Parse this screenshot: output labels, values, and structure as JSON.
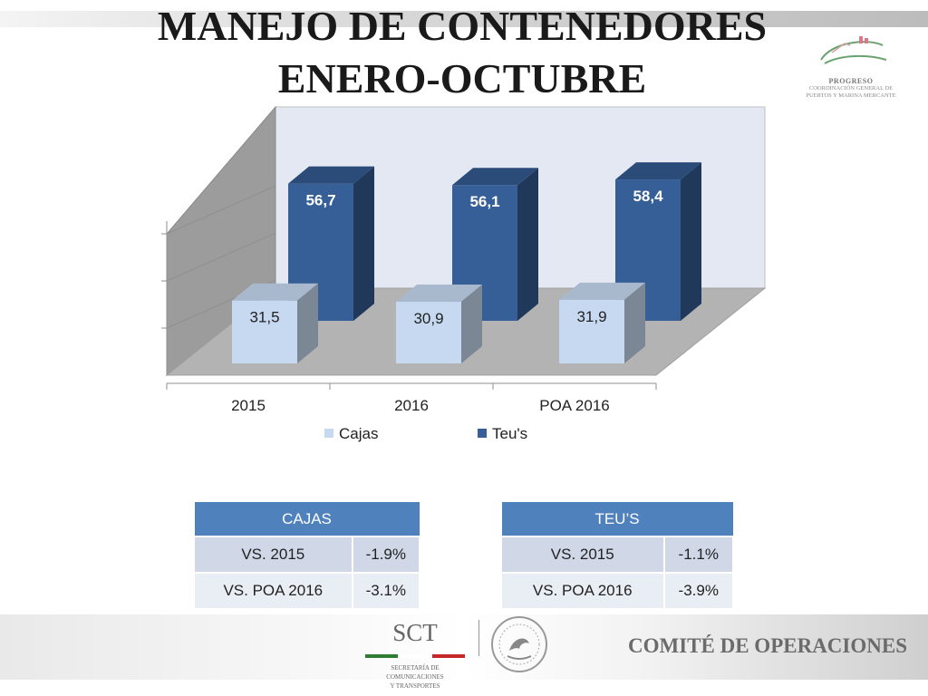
{
  "title_line1": "MANEJO DE CONTENEDORES",
  "title_line2": "ENERO-OCTUBRE",
  "logo": {
    "icon": "progreso-ship-logo",
    "name": "PROGRESO",
    "sub_line1": "COORDINACIÓN GENERAL DE",
    "sub_line2": "PUERTOS Y MARINA MERCANTE"
  },
  "chart_data": {
    "type": "bar",
    "style": "3d-clustered",
    "categories": [
      "2015",
      "2016",
      "POA 2016"
    ],
    "series": [
      {
        "name": "Cajas",
        "color": "#c6d9f1",
        "values": [
          31.5,
          30.9,
          31.9
        ],
        "labels": [
          "31,5",
          "30,9",
          "31,9"
        ]
      },
      {
        "name": "Teu's",
        "color": "#365f97",
        "values": [
          56.7,
          56.1,
          58.4
        ],
        "labels": [
          "56,7",
          "56,1",
          "58,4"
        ]
      }
    ],
    "ylim": [
      0,
      100
    ],
    "legend": "bottom",
    "grid": false
  },
  "tables": {
    "cajas": {
      "header": "CAJAS",
      "rows": [
        [
          "VS. 2015",
          "-1.9%"
        ],
        [
          "VS. POA 2016",
          "-3.1%"
        ]
      ]
    },
    "teus": {
      "header": "TEU’S",
      "rows": [
        [
          "VS. 2015",
          "-1.1%"
        ],
        [
          "VS. POA 2016",
          "-3.9%"
        ]
      ]
    }
  },
  "footer": {
    "sct": "SCT",
    "sct_sub1": "SECRETARÍA DE",
    "sct_sub2": "COMUNICACIONES",
    "sct_sub3": "Y TRANSPORTES",
    "seal_icon": "mexico-coat-of-arms-seal",
    "comite": "COMITÉ DE OPERACIONES"
  }
}
